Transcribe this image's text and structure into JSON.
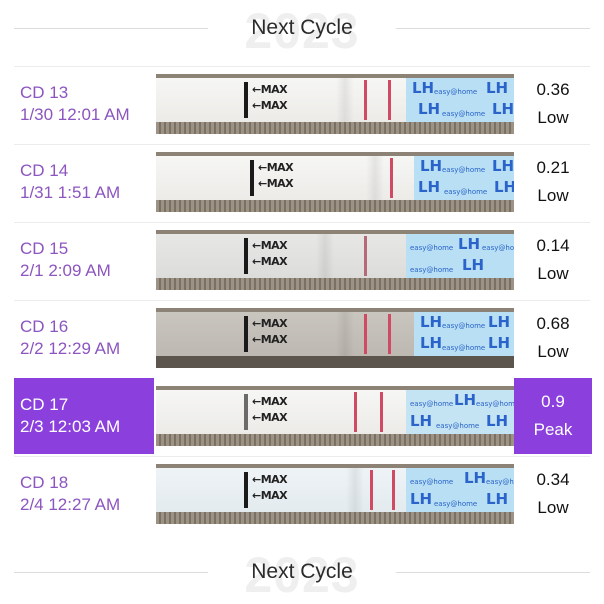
{
  "headers": {
    "top": {
      "year": "2023",
      "title": "Next Cycle"
    },
    "bottom": {
      "year": "2023",
      "title": "Next Cycle"
    }
  },
  "strip_text": {
    "max": "←MAX",
    "lh": "LH",
    "brand": "easy@home"
  },
  "colors": {
    "accent": "#8b3fdc",
    "label": "#8c55bf",
    "test_line": "#d04a64",
    "strip_blue": "#b8dff4"
  },
  "rows": [
    {
      "cd": "CD 13",
      "datetime": "1/30 12:01 AM",
      "value": "0.36",
      "level": "Low",
      "peak": false
    },
    {
      "cd": "CD 14",
      "datetime": "1/31 1:51 AM",
      "value": "0.21",
      "level": "Low",
      "peak": false
    },
    {
      "cd": "CD 15",
      "datetime": "2/1 2:09 AM",
      "value": "0.14",
      "level": "Low",
      "peak": false
    },
    {
      "cd": "CD 16",
      "datetime": "2/2 12:29 AM",
      "value": "0.68",
      "level": "Low",
      "peak": false
    },
    {
      "cd": "CD 17",
      "datetime": "2/3 12:03 AM",
      "value": "0.9",
      "level": "Peak",
      "peak": true
    },
    {
      "cd": "CD 18",
      "datetime": "2/4 12:27 AM",
      "value": "0.34",
      "level": "Low",
      "peak": false
    }
  ]
}
